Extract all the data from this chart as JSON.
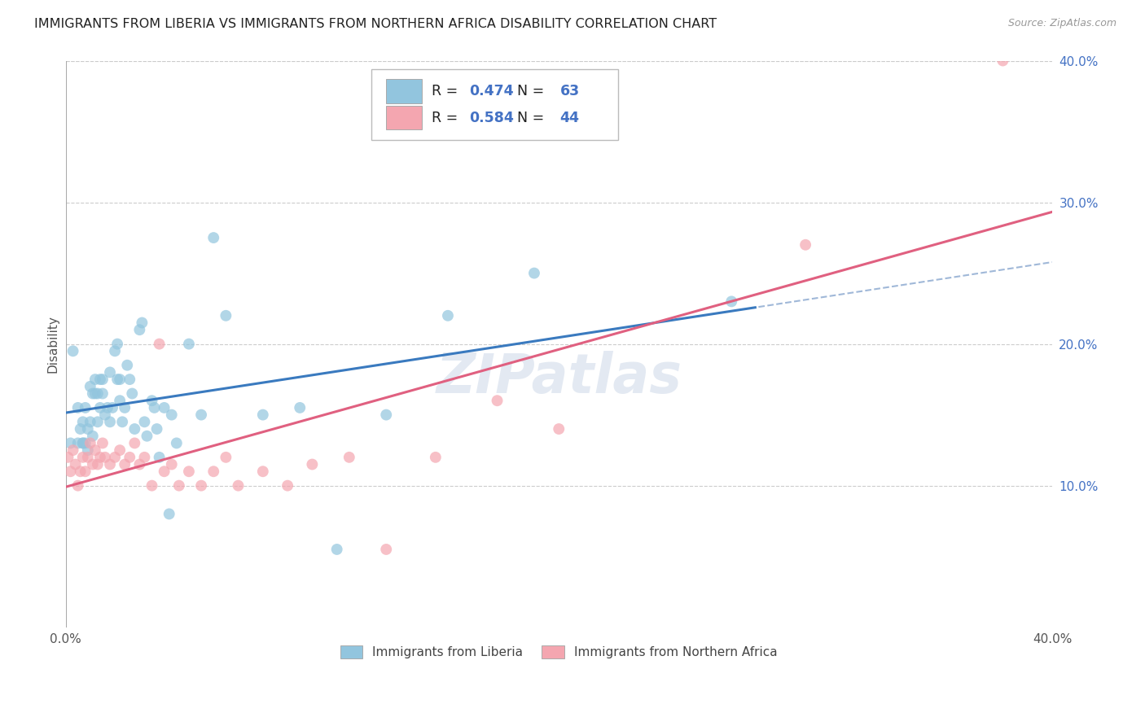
{
  "title": "IMMIGRANTS FROM LIBERIA VS IMMIGRANTS FROM NORTHERN AFRICA DISABILITY CORRELATION CHART",
  "source": "Source: ZipAtlas.com",
  "ylabel": "Disability",
  "xlim": [
    0.0,
    0.4
  ],
  "ylim": [
    0.0,
    0.4
  ],
  "xticks": [
    0.0,
    0.05,
    0.1,
    0.15,
    0.2,
    0.25,
    0.3,
    0.35,
    0.4
  ],
  "xtick_labels": [
    "0.0%",
    "",
    "",
    "",
    "",
    "",
    "",
    "",
    "40.0%"
  ],
  "yticks_right": [
    0.1,
    0.2,
    0.3,
    0.4
  ],
  "ytick_labels_right": [
    "10.0%",
    "20.0%",
    "30.0%",
    "40.0%"
  ],
  "series1_label": "Immigrants from Liberia",
  "series2_label": "Immigrants from Northern Africa",
  "R1": 0.474,
  "N1": 63,
  "R2": 0.584,
  "N2": 44,
  "color1": "#92c5de",
  "color2": "#f4a6b0",
  "trendline_blue_color": "#3a7abf",
  "trendline_pink_color": "#e06080",
  "trendline_dashed_color": "#a0b8d8",
  "background_color": "#ffffff",
  "grid_color": "#cccccc",
  "watermark": "ZIPatlas",
  "liberia_x": [
    0.002,
    0.003,
    0.005,
    0.005,
    0.006,
    0.007,
    0.007,
    0.007,
    0.008,
    0.008,
    0.009,
    0.009,
    0.01,
    0.01,
    0.011,
    0.011,
    0.012,
    0.012,
    0.013,
    0.013,
    0.014,
    0.014,
    0.015,
    0.015,
    0.016,
    0.017,
    0.018,
    0.018,
    0.019,
    0.02,
    0.021,
    0.021,
    0.022,
    0.022,
    0.023,
    0.024,
    0.025,
    0.026,
    0.027,
    0.028,
    0.03,
    0.031,
    0.032,
    0.033,
    0.035,
    0.036,
    0.037,
    0.038,
    0.04,
    0.042,
    0.043,
    0.045,
    0.05,
    0.055,
    0.06,
    0.065,
    0.08,
    0.095,
    0.11,
    0.13,
    0.155,
    0.19,
    0.27
  ],
  "liberia_y": [
    0.13,
    0.195,
    0.155,
    0.13,
    0.14,
    0.145,
    0.13,
    0.13,
    0.155,
    0.13,
    0.125,
    0.14,
    0.17,
    0.145,
    0.165,
    0.135,
    0.175,
    0.165,
    0.165,
    0.145,
    0.175,
    0.155,
    0.175,
    0.165,
    0.15,
    0.155,
    0.18,
    0.145,
    0.155,
    0.195,
    0.2,
    0.175,
    0.175,
    0.16,
    0.145,
    0.155,
    0.185,
    0.175,
    0.165,
    0.14,
    0.21,
    0.215,
    0.145,
    0.135,
    0.16,
    0.155,
    0.14,
    0.12,
    0.155,
    0.08,
    0.15,
    0.13,
    0.2,
    0.15,
    0.275,
    0.22,
    0.15,
    0.155,
    0.055,
    0.15,
    0.22,
    0.25,
    0.23
  ],
  "northern_africa_x": [
    0.001,
    0.002,
    0.003,
    0.004,
    0.005,
    0.006,
    0.007,
    0.008,
    0.009,
    0.01,
    0.011,
    0.012,
    0.013,
    0.014,
    0.015,
    0.016,
    0.018,
    0.02,
    0.022,
    0.024,
    0.026,
    0.028,
    0.03,
    0.032,
    0.035,
    0.038,
    0.04,
    0.043,
    0.046,
    0.05,
    0.055,
    0.06,
    0.065,
    0.07,
    0.08,
    0.09,
    0.1,
    0.115,
    0.13,
    0.15,
    0.175,
    0.2,
    0.3,
    0.38
  ],
  "northern_africa_y": [
    0.12,
    0.11,
    0.125,
    0.115,
    0.1,
    0.11,
    0.12,
    0.11,
    0.12,
    0.13,
    0.115,
    0.125,
    0.115,
    0.12,
    0.13,
    0.12,
    0.115,
    0.12,
    0.125,
    0.115,
    0.12,
    0.13,
    0.115,
    0.12,
    0.1,
    0.2,
    0.11,
    0.115,
    0.1,
    0.11,
    0.1,
    0.11,
    0.12,
    0.1,
    0.11,
    0.1,
    0.115,
    0.12,
    0.055,
    0.12,
    0.16,
    0.14,
    0.27,
    0.4
  ]
}
